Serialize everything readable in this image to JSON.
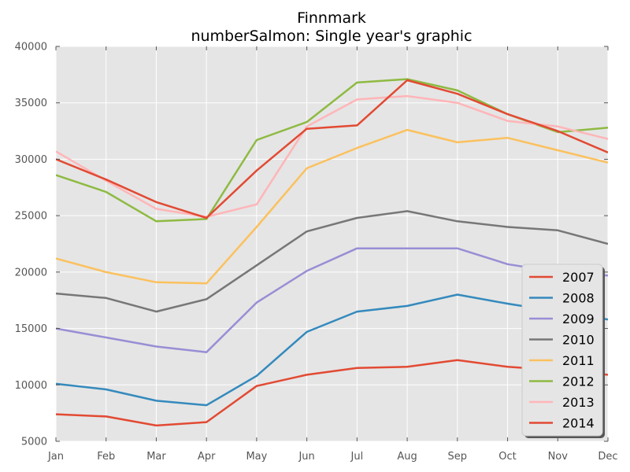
{
  "chart_data": {
    "type": "line",
    "title": "Finnmark",
    "subtitle": "numberSalmon: Single year's graphic",
    "xlabel": "",
    "ylabel": "",
    "categories": [
      "Jan",
      "Feb",
      "Mar",
      "Apr",
      "May",
      "Jun",
      "Jul",
      "Aug",
      "Sep",
      "Oct",
      "Nov",
      "Dec"
    ],
    "ylim": [
      5000,
      40000
    ],
    "yticks": [
      5000,
      10000,
      15000,
      20000,
      25000,
      30000,
      35000,
      40000
    ],
    "grid": true,
    "legend_position": "lower-right",
    "series": [
      {
        "name": "2007",
        "color": "#E24A33",
        "values": [
          7400,
          7200,
          6400,
          6700,
          9900,
          10900,
          11500,
          11600,
          12200,
          11600,
          11300,
          10900
        ]
      },
      {
        "name": "2008",
        "color": "#348ABD",
        "values": [
          10100,
          9600,
          8600,
          8200,
          10800,
          14700,
          16500,
          17000,
          18000,
          17200,
          16500,
          15800
        ]
      },
      {
        "name": "2009",
        "color": "#988ED5",
        "values": [
          15000,
          14200,
          13400,
          12900,
          17300,
          20100,
          22100,
          22100,
          22100,
          20700,
          20000,
          19700
        ]
      },
      {
        "name": "2010",
        "color": "#777777",
        "values": [
          18100,
          17700,
          16500,
          17600,
          20600,
          23600,
          24800,
          25400,
          24500,
          24000,
          23700,
          22500
        ]
      },
      {
        "name": "2011",
        "color": "#FBC15E",
        "values": [
          21200,
          20000,
          19100,
          19000,
          24000,
          29200,
          31000,
          32600,
          31500,
          31900,
          30800,
          29700
        ]
      },
      {
        "name": "2012",
        "color": "#8EBA42",
        "values": [
          28600,
          27100,
          24500,
          24700,
          31700,
          33300,
          36800,
          37100,
          36100,
          34000,
          32400,
          32800
        ]
      },
      {
        "name": "2013",
        "color": "#FFB5B8",
        "values": [
          30700,
          28100,
          25600,
          24900,
          26000,
          32900,
          35300,
          35600,
          35000,
          33400,
          32900,
          31800
        ]
      },
      {
        "name": "2014",
        "color": "#E24A33",
        "values": [
          30000,
          28200,
          26200,
          24800,
          29000,
          32700,
          33000,
          37000,
          35800,
          34000,
          32500,
          30600
        ]
      }
    ]
  }
}
